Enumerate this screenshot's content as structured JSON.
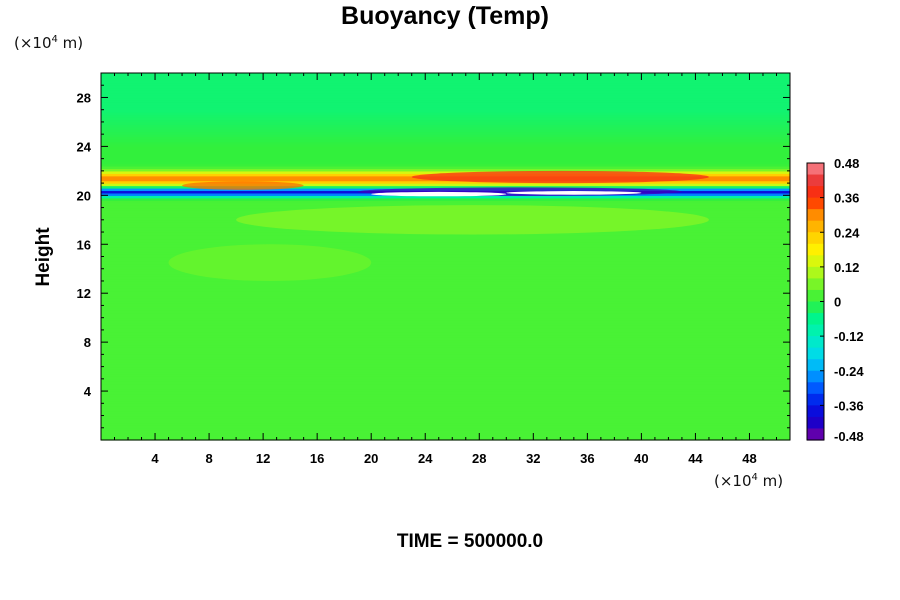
{
  "chart_data": {
    "type": "heatmap",
    "title": "Buoyancy (Temp)",
    "ylabel": "Height",
    "y_unit_prefix": "(×10",
    "y_unit_exp": "4",
    "y_unit_suffix": " m)",
    "x_unit_prefix": "(×10",
    "x_unit_exp": "4",
    "x_unit_suffix": " m)",
    "xlim": [
      0,
      51
    ],
    "ylim": [
      0,
      30
    ],
    "x_ticks": [
      4,
      8,
      12,
      16,
      20,
      24,
      28,
      32,
      36,
      40,
      44,
      48
    ],
    "y_ticks": [
      4,
      8,
      12,
      16,
      20,
      24,
      28
    ],
    "colorbar": {
      "ticks": [
        0.48,
        0.36,
        0.24,
        0.12,
        0,
        -0.12,
        -0.24,
        -0.36,
        -0.48
      ],
      "tick_labels": [
        "0.48",
        "0.36",
        "0.24",
        "0.12",
        "0",
        "-0.12",
        "-0.24",
        "-0.36",
        "-0.48"
      ],
      "range": [
        -0.48,
        0.48
      ],
      "levels": 24
    },
    "field_description_bands": [
      {
        "height": 21.4,
        "value": 0.3
      },
      {
        "height": 20.3,
        "value": -0.4
      }
    ],
    "background_value": 0.02,
    "time_label": "TIME = 500000.0"
  }
}
